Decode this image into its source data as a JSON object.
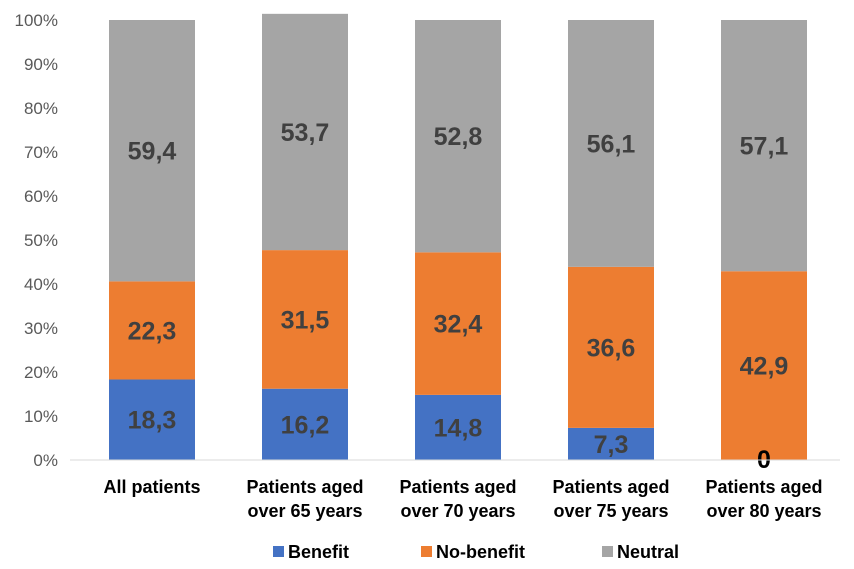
{
  "chart_data": {
    "type": "bar",
    "stacked": true,
    "percent_stacked": true,
    "categories": [
      [
        "All patients"
      ],
      [
        "Patients aged",
        "over 65 years"
      ],
      [
        "Patients aged",
        "over 70 years"
      ],
      [
        "Patients aged",
        "over 75 years"
      ],
      [
        "Patients aged",
        "over 80 years"
      ]
    ],
    "series": [
      {
        "name": "Benefit",
        "color": "#4472C4",
        "values": [
          18.3,
          16.2,
          14.8,
          7.3,
          0
        ],
        "labels": [
          "18,3",
          "16,2",
          "14,8",
          "7,3",
          "0"
        ]
      },
      {
        "name": "No-benefit",
        "color": "#ED7D31",
        "values": [
          22.3,
          31.5,
          32.4,
          36.6,
          42.9
        ],
        "labels": [
          "22,3",
          "31,5",
          "32,4",
          "36,6",
          "42,9"
        ]
      },
      {
        "name": "Neutral",
        "color": "#A5A5A5",
        "values": [
          59.4,
          53.7,
          52.8,
          56.1,
          57.1
        ],
        "labels": [
          "59,4",
          "53,7",
          "52,8",
          "56,1",
          "57,1"
        ]
      }
    ],
    "y_ticks": [
      "0%",
      "10%",
      "20%",
      "30%",
      "40%",
      "50%",
      "60%",
      "70%",
      "80%",
      "90%",
      "100%"
    ],
    "ylim": [
      0,
      100
    ],
    "grid": false,
    "legend": "bottom"
  }
}
